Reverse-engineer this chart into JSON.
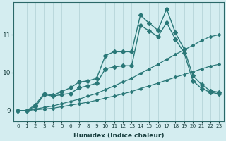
{
  "xlabel": "Humidex (Indice chaleur)",
  "bg_color": "#d4edf0",
  "grid_color": "#b0d0d4",
  "line_color": "#2a7878",
  "xlim": [
    -0.5,
    23.5
  ],
  "ylim": [
    8.72,
    11.85
  ],
  "yticks": [
    9,
    10,
    11
  ],
  "xticks": [
    0,
    1,
    2,
    3,
    4,
    5,
    6,
    7,
    8,
    9,
    10,
    11,
    12,
    13,
    14,
    15,
    16,
    17,
    18,
    19,
    20,
    21,
    22,
    23
  ],
  "series": [
    {
      "x": [
        0,
        1,
        2,
        3,
        4,
        5,
        6,
        7,
        8,
        9,
        10,
        11,
        12,
        13,
        14,
        15,
        16,
        17,
        18,
        19,
        20,
        21,
        22,
        23
      ],
      "y": [
        9.0,
        9.0,
        9.15,
        9.45,
        9.4,
        9.5,
        9.6,
        9.75,
        9.78,
        9.85,
        10.45,
        10.55,
        10.55,
        10.55,
        11.52,
        11.3,
        11.12,
        11.68,
        11.05,
        10.62,
        9.92,
        9.68,
        9.52,
        9.48
      ],
      "marker": "D",
      "marker_size": 3,
      "linewidth": 1.0
    },
    {
      "x": [
        0,
        1,
        2,
        3,
        4,
        5,
        6,
        7,
        8,
        9,
        10,
        11,
        12,
        13,
        14,
        15,
        16,
        17,
        18,
        19,
        20,
        21,
        22,
        23
      ],
      "y": [
        9.0,
        9.0,
        9.1,
        9.42,
        9.38,
        9.42,
        9.45,
        9.6,
        9.65,
        9.72,
        10.1,
        10.15,
        10.18,
        10.18,
        11.25,
        11.1,
        10.95,
        11.32,
        10.88,
        10.52,
        9.78,
        9.58,
        9.48,
        9.44
      ],
      "marker": "D",
      "marker_size": 3,
      "linewidth": 1.0
    },
    {
      "x": [
        0,
        1,
        2,
        3,
        4,
        5,
        6,
        7,
        8,
        9,
        10,
        11,
        12,
        13,
        14,
        15,
        16,
        17,
        18,
        19,
        20,
        21,
        22,
        23
      ],
      "y": [
        9.0,
        9.0,
        9.04,
        9.08,
        9.12,
        9.18,
        9.24,
        9.3,
        9.38,
        9.45,
        9.55,
        9.65,
        9.75,
        9.85,
        9.98,
        10.1,
        10.22,
        10.35,
        10.48,
        10.6,
        10.72,
        10.85,
        10.95,
        11.0
      ],
      "marker": "D",
      "marker_size": 2,
      "linewidth": 0.9
    },
    {
      "x": [
        0,
        1,
        2,
        3,
        4,
        5,
        6,
        7,
        8,
        9,
        10,
        11,
        12,
        13,
        14,
        15,
        16,
        17,
        18,
        19,
        20,
        21,
        22,
        23
      ],
      "y": [
        9.0,
        9.0,
        9.02,
        9.04,
        9.06,
        9.1,
        9.14,
        9.18,
        9.22,
        9.27,
        9.33,
        9.38,
        9.44,
        9.5,
        9.58,
        9.65,
        9.72,
        9.8,
        9.88,
        9.95,
        10.02,
        10.1,
        10.17,
        10.22
      ],
      "marker": "D",
      "marker_size": 2,
      "linewidth": 0.9
    }
  ]
}
